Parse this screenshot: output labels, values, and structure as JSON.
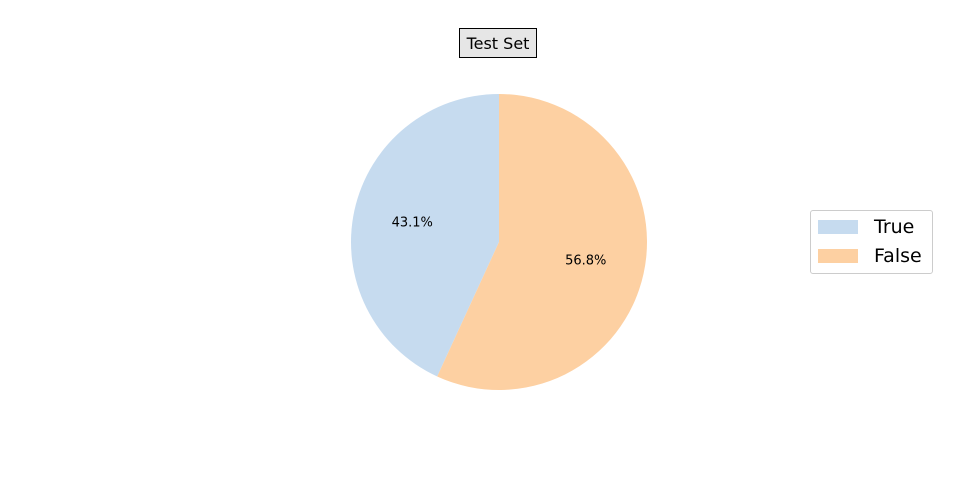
{
  "chart_data": {
    "type": "pie",
    "title": "Test Set",
    "slices": [
      {
        "label": "True",
        "percent": 43.1,
        "percent_label": "43.1%",
        "color": "#c6dbef"
      },
      {
        "label": "False",
        "percent": 56.8,
        "percent_label": "56.8%",
        "color": "#fdd0a2"
      }
    ],
    "legend": {
      "placement": "right",
      "items": [
        "True",
        "False"
      ]
    },
    "start_angle_deg": 90,
    "direction": "counterclockwise"
  }
}
